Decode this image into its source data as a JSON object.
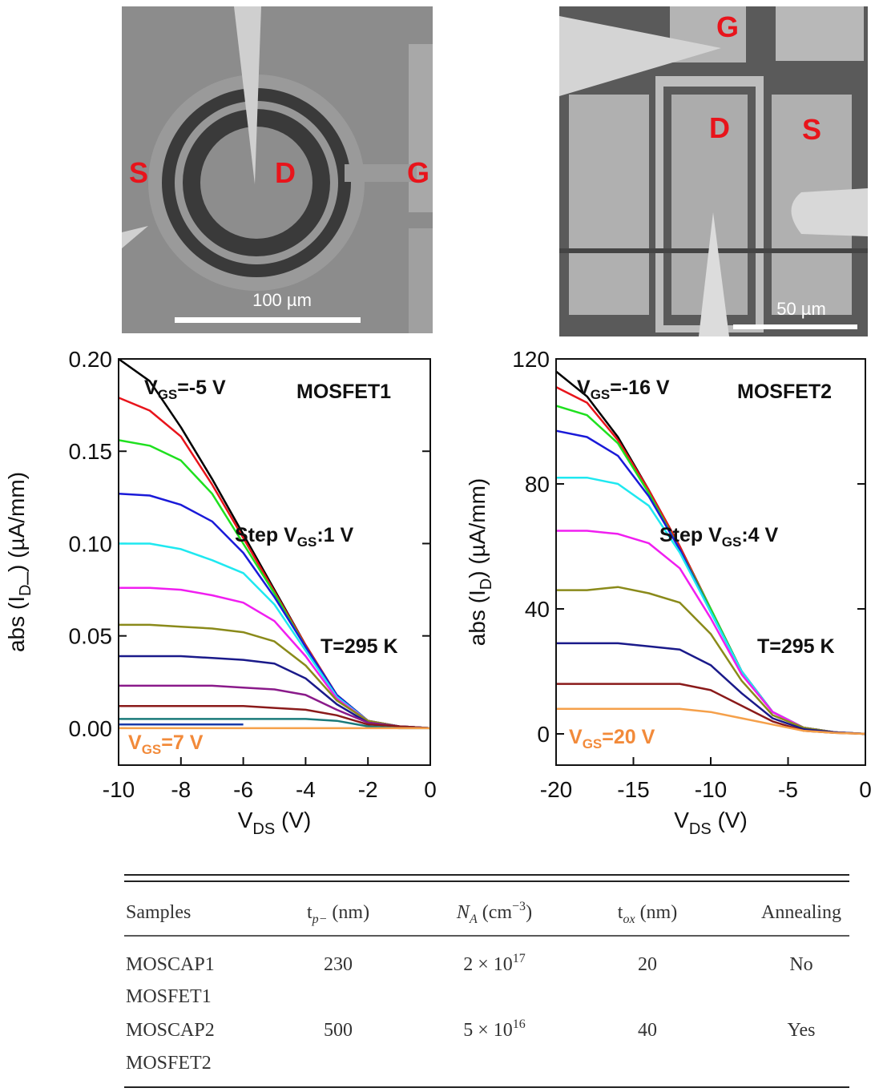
{
  "images": [
    {
      "labels": [
        "S",
        "D",
        "G"
      ],
      "scale": "100 µm"
    },
    {
      "labels": [
        "G",
        "D",
        "S"
      ],
      "scale": "50 µm"
    }
  ],
  "chart_data": [
    {
      "type": "line",
      "annotations": [
        {
          "parts": [
            "V",
            "GS",
            "=-5 V"
          ]
        },
        {
          "parts": [
            "MOSFET1"
          ]
        },
        {
          "parts": [
            "Step V",
            "GS",
            ":1 V"
          ]
        },
        {
          "parts": [
            "T=295 K"
          ]
        },
        {
          "parts": [
            "V",
            "GS",
            "=7 V"
          ],
          "color": "#f28a3a"
        }
      ],
      "xlabel": [
        "V",
        "DS",
        " (V)"
      ],
      "ylabel": [
        "abs (I",
        "D",
        "_) (µA/mm)"
      ],
      "xlim": [
        -10,
        0
      ],
      "xticks": [
        -10,
        -8,
        -6,
        -4,
        -2,
        0
      ],
      "ylim": [
        -0.02,
        0.2
      ],
      "yticks": [
        {
          "value": 0,
          "label": "0.00"
        },
        {
          "value": 0.05,
          "label": "0.05"
        },
        {
          "value": 0.1,
          "label": "0.10"
        },
        {
          "value": 0.15,
          "label": "0.15"
        },
        {
          "value": 0.2,
          "label": "0.20"
        }
      ],
      "x": [
        -10,
        -9,
        -8,
        -7,
        -6,
        -5,
        -4,
        -3,
        -2,
        -1,
        0
      ],
      "series": [
        {
          "color": "#000000",
          "values": [
            0.2,
            0.188,
            0.163,
            0.135,
            0.105,
            0.075,
            0.045,
            0.018,
            0.004,
            0.001,
            0
          ]
        },
        {
          "color": "#e8141b",
          "values": [
            0.179,
            0.172,
            0.158,
            0.132,
            0.103,
            0.074,
            0.045,
            0.018,
            0.004,
            0.001,
            0
          ]
        },
        {
          "color": "#1fe01f",
          "values": [
            0.156,
            0.153,
            0.145,
            0.127,
            0.1,
            0.073,
            0.044,
            0.018,
            0.004,
            0.001,
            0
          ]
        },
        {
          "color": "#1a1ad8",
          "values": [
            0.127,
            0.126,
            0.121,
            0.112,
            0.095,
            0.071,
            0.044,
            0.018,
            0.004,
            0.001,
            0
          ]
        },
        {
          "color": "#1fe8f0",
          "values": [
            0.1,
            0.1,
            0.097,
            0.091,
            0.084,
            0.067,
            0.042,
            0.017,
            0.004,
            0.001,
            0
          ]
        },
        {
          "color": "#f01ef0",
          "values": [
            0.076,
            0.076,
            0.075,
            0.072,
            0.068,
            0.058,
            0.039,
            0.016,
            0.004,
            0.001,
            0
          ]
        },
        {
          "color": "#8a8a1a",
          "values": [
            0.056,
            0.056,
            0.055,
            0.054,
            0.052,
            0.047,
            0.034,
            0.015,
            0.004,
            0.001,
            0
          ]
        },
        {
          "color": "#1a1a8a",
          "values": [
            0.039,
            0.039,
            0.039,
            0.038,
            0.037,
            0.035,
            0.027,
            0.013,
            0.003,
            0.001,
            0
          ]
        },
        {
          "color": "#8a1a8a",
          "values": [
            0.023,
            0.023,
            0.023,
            0.023,
            0.022,
            0.021,
            0.018,
            0.01,
            0.003,
            0.001,
            0
          ]
        },
        {
          "color": "#8a1a1a",
          "values": [
            0.012,
            0.012,
            0.012,
            0.012,
            0.012,
            0.011,
            0.01,
            0.007,
            0.002,
            0.001,
            0
          ]
        },
        {
          "color": "#1a7a7a",
          "values": [
            0.005,
            0.005,
            0.005,
            0.005,
            0.005,
            0.005,
            0.005,
            0.004,
            0.001,
            0,
            0
          ]
        },
        {
          "color": "#1a3aa8",
          "values": [
            0.002,
            0.002,
            0.002,
            0.002,
            0.002,
            null,
            null,
            null,
            null,
            null,
            null
          ]
        },
        {
          "color": "#f5a04a",
          "values": [
            0,
            0,
            0,
            0,
            0,
            0,
            0,
            0,
            0,
            0,
            0
          ]
        }
      ]
    },
    {
      "type": "line",
      "annotations": [
        {
          "parts": [
            "V",
            "GS",
            "=-16 V"
          ]
        },
        {
          "parts": [
            "MOSFET2"
          ]
        },
        {
          "parts": [
            "Step V",
            "GS",
            ":4 V"
          ]
        },
        {
          "parts": [
            "T=295 K"
          ]
        },
        {
          "parts": [
            "V",
            "GS",
            "=20 V"
          ],
          "color": "#f28a3a"
        }
      ],
      "xlabel": [
        "V",
        "DS",
        " (V)"
      ],
      "ylabel": [
        "abs (I",
        "D",
        ") (µA/mm)"
      ],
      "xlim": [
        -20,
        0
      ],
      "xticks": [
        -20,
        -15,
        -10,
        -5,
        0
      ],
      "ylim": [
        -10,
        120
      ],
      "yticks": [
        0,
        40,
        80,
        120
      ],
      "x": [
        -20,
        -18,
        -16,
        -14,
        -12,
        -10,
        -8,
        -6,
        -4,
        -2,
        0
      ],
      "series": [
        {
          "color": "#000000",
          "values": [
            116,
            108,
            95,
            78,
            60,
            40,
            20,
            7,
            2,
            0.5,
            0
          ]
        },
        {
          "color": "#e8141b",
          "values": [
            111,
            106,
            94,
            78,
            60,
            40,
            20,
            7,
            2,
            0.5,
            0
          ]
        },
        {
          "color": "#1fe01f",
          "values": [
            105,
            102,
            93,
            77,
            59,
            40,
            20,
            7,
            2,
            0.5,
            0
          ]
        },
        {
          "color": "#1a1ad8",
          "values": [
            97,
            95,
            89,
            76,
            59,
            39,
            20,
            7,
            2,
            0.5,
            0
          ]
        },
        {
          "color": "#1fe8f0",
          "values": [
            82,
            82,
            80,
            73,
            58,
            39,
            20,
            7,
            2,
            0.5,
            0
          ]
        },
        {
          "color": "#f01ef0",
          "values": [
            65,
            65,
            64,
            61,
            53,
            37,
            19,
            7,
            2,
            0.5,
            0
          ]
        },
        {
          "color": "#8a8a1a",
          "values": [
            46,
            46,
            47,
            45,
            42,
            32,
            17,
            6,
            2,
            0.5,
            0
          ]
        },
        {
          "color": "#1a1a8a",
          "values": [
            29,
            29,
            29,
            28,
            27,
            22,
            13,
            5,
            1.5,
            0.5,
            0
          ]
        },
        {
          "color": "#8a1a1a",
          "values": [
            16,
            16,
            16,
            16,
            16,
            14,
            9,
            4,
            1,
            0.3,
            0
          ]
        },
        {
          "color": "#f5a04a",
          "values": [
            8,
            8,
            8,
            8,
            8,
            7,
            5,
            3,
            1,
            0.3,
            0
          ]
        }
      ]
    }
  ],
  "table": {
    "header": [
      "Samples",
      [
        "t",
        "p−",
        " (nm)"
      ],
      [
        "N",
        "A",
        " (cm",
        "−3",
        ")"
      ],
      [
        "t",
        "ox",
        " (nm)"
      ],
      "Annealing"
    ],
    "rows": [
      [
        "MOSCAP1",
        230,
        [
          "2 × 10",
          "17"
        ],
        20,
        "No"
      ],
      [
        "MOSFET1"
      ],
      [
        "MOSCAP2",
        500,
        [
          "5 × 10",
          "16"
        ],
        40,
        "Yes"
      ],
      [
        "MOSFET2"
      ]
    ]
  }
}
